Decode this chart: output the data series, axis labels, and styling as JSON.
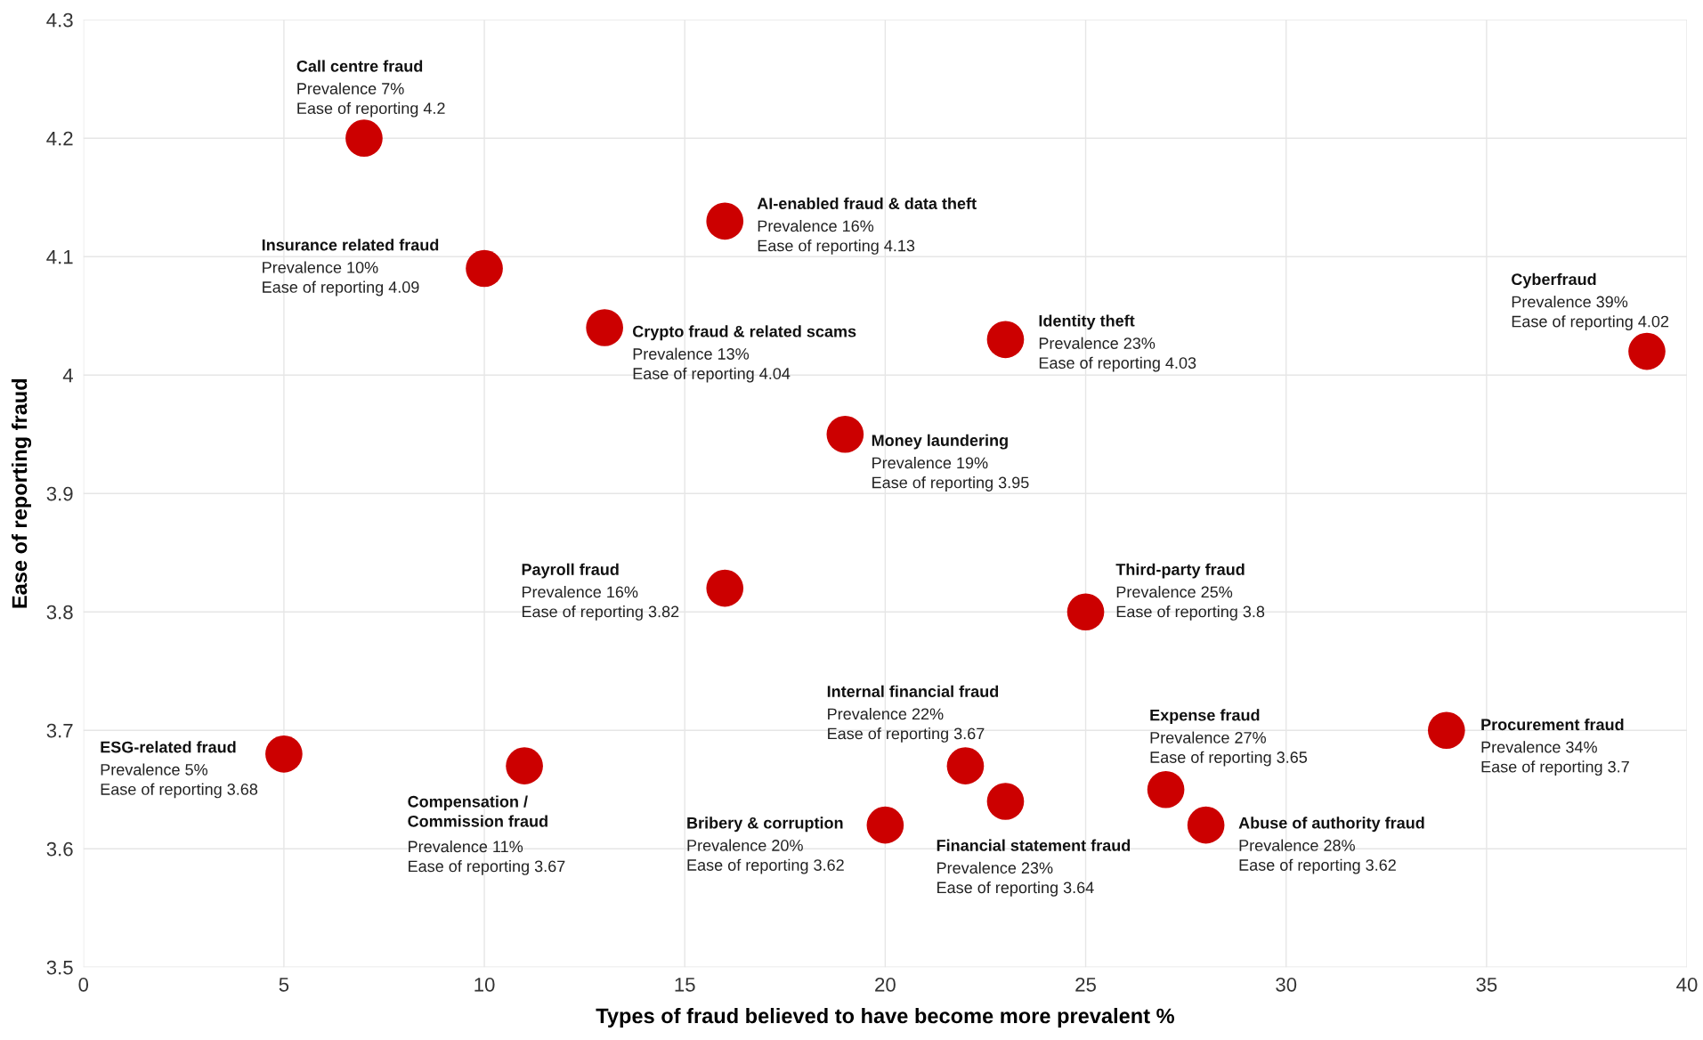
{
  "chart_data": {
    "type": "scatter",
    "xlabel": "Types of fraud believed to have become more prevalent %",
    "ylabel": "Ease of reporting fraud",
    "x": [
      7,
      10,
      16,
      13,
      23,
      39,
      19,
      16,
      25,
      5,
      11,
      22,
      20,
      23,
      27,
      28,
      34
    ],
    "series": [
      {
        "color": "#cc0000",
        "values": [
          4.2,
          4.09,
          4.13,
          4.04,
          4.03,
          4.02,
          3.95,
          3.82,
          3.8,
          3.68,
          3.67,
          3.67,
          3.62,
          3.64,
          3.65,
          3.62,
          3.7
        ]
      }
    ],
    "marker": "circle",
    "grid": true,
    "xlim": [
      0,
      40
    ],
    "xticks": [
      0,
      5,
      10,
      15,
      20,
      25,
      30,
      35,
      40
    ],
    "ylim": [
      3.5,
      4.3
    ],
    "yticks": [
      3.5,
      3.6,
      3.7,
      3.8,
      3.9,
      4,
      4.1,
      4.2,
      4.3
    ],
    "annotations": [
      {
        "text": "Call centre fraud\nPrevalence 7%\nEase of reporting 4.2",
        "x": 7,
        "y": 4.2
      },
      {
        "text": "Insurance related fraud\nPrevalence 10%\nEase of reporting 4.09",
        "x": 10,
        "y": 4.09
      },
      {
        "text": "AI-enabled fraud & data theft\nPrevalence 16%\nEase of reporting 4.13",
        "x": 16,
        "y": 4.13
      },
      {
        "text": "Crypto fraud & related scams\nPrevalence 13%\nEase of reporting 4.04",
        "x": 13,
        "y": 4.04
      },
      {
        "text": "Identity theft\nPrevalence 23%\nEase of reporting 4.03",
        "x": 23,
        "y": 4.03
      },
      {
        "text": "Cyberfraud\nPrevalence 39%\nEase of reporting 4.02",
        "x": 39,
        "y": 4.02
      },
      {
        "text": "Money laundering\nPrevalence 19%\nEase of reporting 3.95",
        "x": 19,
        "y": 3.95
      },
      {
        "text": "Payroll fraud\nPrevalence 16%\nEase of reporting 3.82",
        "x": 16,
        "y": 3.82
      },
      {
        "text": "Third-party fraud\nPrevalence 25%\nEase of reporting 3.8",
        "x": 25,
        "y": 3.8
      },
      {
        "text": "ESG-related fraud\nPrevalence 5%\nEase of reporting 3.68",
        "x": 5,
        "y": 3.68
      },
      {
        "text": "Compensation /\nCommission fraud\nPrevalence 11%\nEase of reporting 3.67",
        "x": 11,
        "y": 3.67
      },
      {
        "text": "Internal financial fraud\nPrevalence 22%\nEase of reporting 3.67",
        "x": 22,
        "y": 3.67
      },
      {
        "text": "Bribery & corruption\nPrevalence 20%\nEase of reporting 3.62",
        "x": 20,
        "y": 3.62
      },
      {
        "text": "Financial statement fraud\nPrevalence 23%\nEase of reporting 3.64",
        "x": 23,
        "y": 3.64
      },
      {
        "text": "Expense fraud\nPrevalence 27%\nEase of reporting 3.65",
        "x": 27,
        "y": 3.65
      },
      {
        "text": "Abuse of authority fraud\nPrevalence 28%\nEase of reporting 3.62",
        "x": 28,
        "y": 3.62
      },
      {
        "text": "Procurement fraud\nPrevalence 34%\nEase of reporting 3.7",
        "x": 34,
        "y": 3.7
      }
    ]
  }
}
